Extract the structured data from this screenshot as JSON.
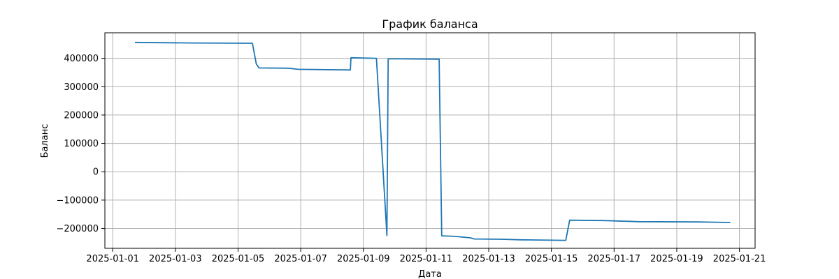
{
  "chart_data": {
    "type": "line",
    "title": "График баланса",
    "xlabel": "Дата",
    "ylabel": "Баланс",
    "grid": true,
    "x_axis_type": "date",
    "xlim": [
      "2025-01-00T18:00",
      "2025-01-21T12:00"
    ],
    "ylim": [
      -270000,
      490000
    ],
    "x_ticks": [
      "2025-01-01",
      "2025-01-03",
      "2025-01-05",
      "2025-01-07",
      "2025-01-09",
      "2025-01-11",
      "2025-01-13",
      "2025-01-15",
      "2025-01-17",
      "2025-01-19",
      "2025-01-21"
    ],
    "y_ticks": [
      400000,
      300000,
      200000,
      100000,
      0,
      -100000,
      -200000
    ],
    "y_tick_labels": [
      "400000",
      "300000",
      "200000",
      "100000",
      "0",
      "−100000",
      "−200000"
    ],
    "color": "#1f77b4",
    "series": [
      {
        "x": [
          "2025-01-01T17:00",
          "2025-01-03T12:00",
          "2025-01-05T11:00",
          "2025-01-05T14:00",
          "2025-01-05T16:00",
          "2025-01-06T15:00",
          "2025-01-06T22:00",
          "2025-01-08T14:00",
          "2025-01-08T14:30",
          "2025-01-09T10:00",
          "2025-01-09T18:00",
          "2025-01-09T19:00",
          "2025-01-10T04:00",
          "2025-01-11T10:00",
          "2025-01-11T12:00",
          "2025-01-11T22:00",
          "2025-01-12T10:00",
          "2025-01-12T13:00",
          "2025-01-13T10:00",
          "2025-01-14T00:00",
          "2025-01-15T11:00",
          "2025-01-15T14:00",
          "2025-01-16T16:00",
          "2025-01-17T19:00",
          "2025-01-19T16:00",
          "2025-01-20T17:00"
        ],
        "y": [
          456000,
          454000,
          453000,
          380000,
          366000,
          365000,
          361000,
          359000,
          402000,
          400000,
          -225000,
          398000,
          398000,
          397000,
          -226000,
          -228000,
          -233000,
          -237000,
          -238000,
          -240000,
          -242000,
          -171000,
          -172000,
          -176000,
          -177000,
          -179000
        ]
      }
    ]
  }
}
